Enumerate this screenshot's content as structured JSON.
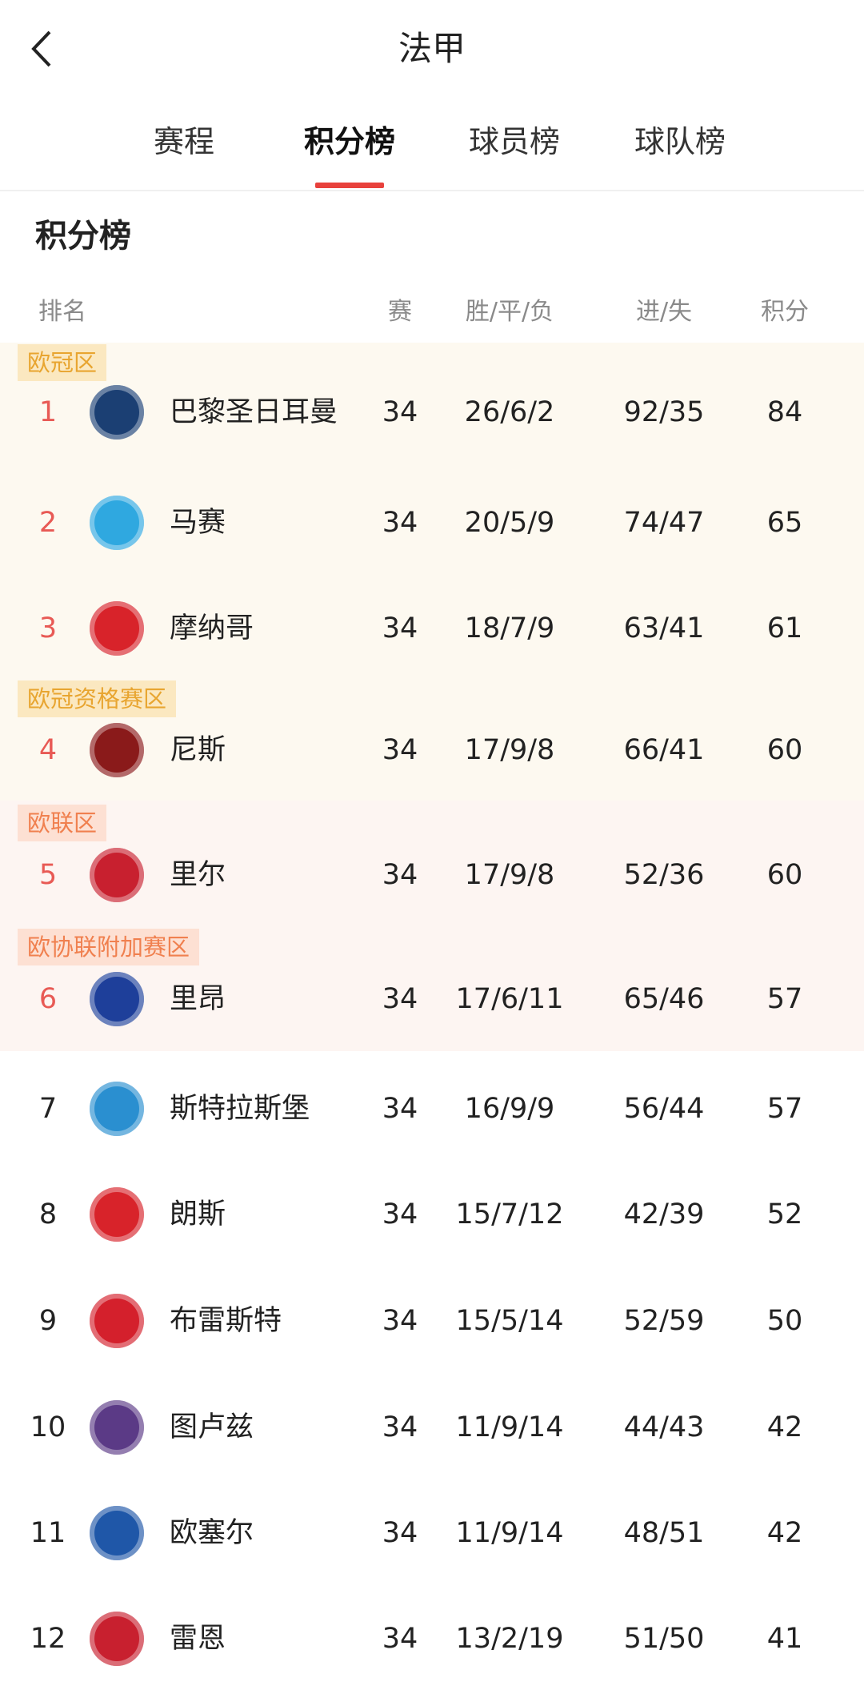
{
  "header": {
    "title": "法甲",
    "back_icon": "chevron-left-icon"
  },
  "tabs": [
    {
      "label": "赛程",
      "active": false
    },
    {
      "label": "积分榜",
      "active": true
    },
    {
      "label": "球员榜",
      "active": false
    },
    {
      "label": "球队榜",
      "active": false
    }
  ],
  "accent_color": "#e8413c",
  "section_title": "积分榜",
  "columns": {
    "rank": "排名",
    "played": "赛",
    "wdl": "胜/平/负",
    "goals": "进/失",
    "points": "积分"
  },
  "zones": [
    {
      "label": "欧冠区",
      "text_color": "#e8a530",
      "tag_bg": "#fbe8c0",
      "bg": "#fdf9f0"
    },
    {
      "label": "欧冠资格赛区",
      "text_color": "#e8a530",
      "tag_bg": "#fbe8c0",
      "bg": "#fdf9f0"
    },
    {
      "label": "欧联区",
      "text_color": "#f0804f",
      "tag_bg": "#fde0d3",
      "bg": "#fdf5f2"
    },
    {
      "label": "欧协联附加赛区",
      "text_color": "#f0804f",
      "tag_bg": "#fde0d3",
      "bg": "#fdf5f2"
    }
  ],
  "standings": [
    {
      "rank": "1",
      "team": "巴黎圣日耳曼",
      "played": "34",
      "wdl": "26/6/2",
      "goals": "92/35",
      "points": "84",
      "highlight": true,
      "logo_color": "#1b3f73"
    },
    {
      "rank": "2",
      "team": "马赛",
      "played": "34",
      "wdl": "20/5/9",
      "goals": "74/47",
      "points": "65",
      "highlight": true,
      "logo_color": "#2fa8e0"
    },
    {
      "rank": "3",
      "team": "摩纳哥",
      "played": "34",
      "wdl": "18/7/9",
      "goals": "63/41",
      "points": "61",
      "highlight": true,
      "logo_color": "#d8232a"
    },
    {
      "rank": "4",
      "team": "尼斯",
      "played": "34",
      "wdl": "17/9/8",
      "goals": "66/41",
      "points": "60",
      "highlight": true,
      "logo_color": "#8a1a1a"
    },
    {
      "rank": "5",
      "team": "里尔",
      "played": "34",
      "wdl": "17/9/8",
      "goals": "52/36",
      "points": "60",
      "highlight": true,
      "logo_color": "#c8202f"
    },
    {
      "rank": "6",
      "team": "里昂",
      "played": "34",
      "wdl": "17/6/11",
      "goals": "65/46",
      "points": "57",
      "highlight": true,
      "logo_color": "#1e3f9a"
    },
    {
      "rank": "7",
      "team": "斯特拉斯堡",
      "played": "34",
      "wdl": "16/9/9",
      "goals": "56/44",
      "points": "57",
      "highlight": false,
      "logo_color": "#2a8fd0"
    },
    {
      "rank": "8",
      "team": "朗斯",
      "played": "34",
      "wdl": "15/7/12",
      "goals": "42/39",
      "points": "52",
      "highlight": false,
      "logo_color": "#d8232a"
    },
    {
      "rank": "9",
      "team": "布雷斯特",
      "played": "34",
      "wdl": "15/5/14",
      "goals": "52/59",
      "points": "50",
      "highlight": false,
      "logo_color": "#d4202c"
    },
    {
      "rank": "10",
      "team": "图卢兹",
      "played": "34",
      "wdl": "11/9/14",
      "goals": "44/43",
      "points": "42",
      "highlight": false,
      "logo_color": "#5b3a86"
    },
    {
      "rank": "11",
      "team": "欧塞尔",
      "played": "34",
      "wdl": "11/9/14",
      "goals": "48/51",
      "points": "42",
      "highlight": false,
      "logo_color": "#1f57a8"
    },
    {
      "rank": "12",
      "team": "雷恩",
      "played": "34",
      "wdl": "13/2/19",
      "goals": "51/50",
      "points": "41",
      "highlight": false,
      "logo_color": "#c8202f"
    }
  ],
  "rank_highlight_color": "#e85a55"
}
